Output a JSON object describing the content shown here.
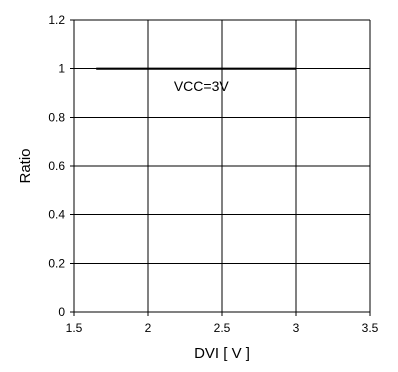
{
  "chart_data": {
    "type": "line",
    "title": "",
    "xlabel": "DVI [ V ]",
    "ylabel": "Ratio",
    "xlim": [
      1.5,
      3.5
    ],
    "ylim": [
      0,
      1.2
    ],
    "x_ticks": [
      1.5,
      2,
      2.5,
      3,
      3.5
    ],
    "x_tick_labels": [
      "1.5",
      "2",
      "2.5",
      "3",
      "3.5"
    ],
    "y_ticks": [
      0,
      0.2,
      0.4,
      0.6,
      0.8,
      1,
      1.2
    ],
    "y_tick_labels": [
      "0",
      "0.2",
      "0.4",
      "0.6",
      "0.8",
      "1",
      "1.2"
    ],
    "grid": true,
    "legend": "none",
    "series": [
      {
        "x": [
          1.65,
          3.0
        ],
        "y": [
          1.0,
          1.0
        ],
        "color": "#000000"
      }
    ],
    "annotations": [
      {
        "text": "VCC=3V",
        "x": 2.36,
        "y": 0.95
      }
    ]
  }
}
